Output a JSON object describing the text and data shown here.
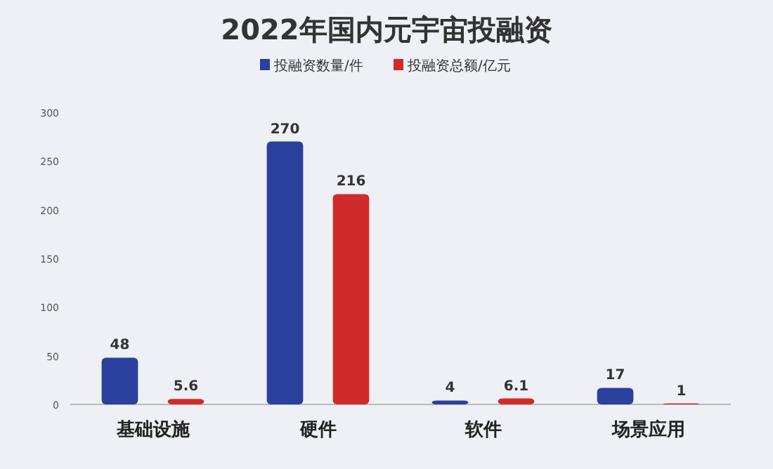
{
  "chart_data": {
    "type": "bar",
    "title": "2022年国内元宇宙投融资",
    "categories": [
      "基础设施",
      "硬件",
      "软件",
      "场景应用"
    ],
    "series": [
      {
        "name": "投融资数量/件",
        "color": "#2b3f9c",
        "values": [
          48,
          270,
          4,
          17
        ]
      },
      {
        "name": "投融资总额/亿元",
        "color": "#d12a2a",
        "values": [
          5.6,
          216,
          6.1,
          1
        ]
      }
    ],
    "ylim": [
      0,
      300
    ],
    "yticks": [
      0,
      50,
      100,
      150,
      200,
      250,
      300
    ],
    "data_labels": true,
    "legend": "top",
    "grid": false
  }
}
